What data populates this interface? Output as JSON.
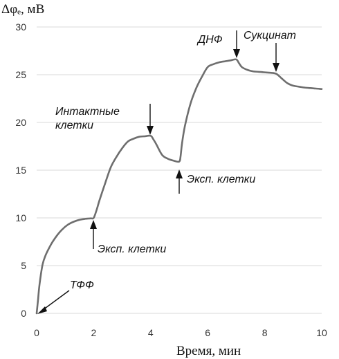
{
  "chart_data": {
    "type": "line",
    "title": "",
    "ylabel": "Δφₑ, мВ",
    "xlabel": "Время, мин",
    "xlim": [
      0,
      10
    ],
    "ylim": [
      0,
      30
    ],
    "xticks": [
      0,
      2,
      4,
      6,
      8,
      10
    ],
    "yticks": [
      0,
      5,
      10,
      15,
      20,
      25,
      30
    ],
    "grid": "horizontal",
    "line_color": "#6e6e6e",
    "x": [
      0,
      0.05,
      0.1,
      0.2,
      0.3,
      0.5,
      0.7,
      0.9,
      1.1,
      1.3,
      1.5,
      1.7,
      1.9,
      2.0,
      2.1,
      2.2,
      2.4,
      2.6,
      2.8,
      3.0,
      3.2,
      3.4,
      3.6,
      3.8,
      4.0,
      4.1,
      4.2,
      4.4,
      4.6,
      4.8,
      5.0,
      5.05,
      5.1,
      5.2,
      5.4,
      5.6,
      5.8,
      6.0,
      6.2,
      6.4,
      6.6,
      6.8,
      7.0,
      7.1,
      7.2,
      7.4,
      7.6,
      7.8,
      8.0,
      8.2,
      8.4,
      8.6,
      8.8,
      9.0,
      9.2,
      9.4,
      9.6,
      9.8,
      10.0
    ],
    "y": [
      0,
      1.5,
      3.0,
      5.0,
      6.0,
      7.2,
      8.1,
      8.8,
      9.3,
      9.6,
      9.8,
      9.9,
      9.95,
      10.0,
      10.8,
      11.8,
      13.6,
      15.3,
      16.4,
      17.3,
      18.0,
      18.3,
      18.5,
      18.55,
      18.6,
      18.2,
      17.7,
      16.6,
      16.2,
      16.0,
      15.9,
      16.5,
      17.8,
      19.6,
      22.0,
      23.6,
      24.8,
      25.8,
      26.1,
      26.3,
      26.4,
      26.5,
      26.6,
      26.2,
      25.8,
      25.5,
      25.35,
      25.3,
      25.25,
      25.2,
      25.1,
      24.6,
      24.1,
      23.85,
      23.75,
      23.65,
      23.6,
      23.55,
      23.5
    ],
    "annotations": [
      {
        "text": "ТФФ",
        "x": 0.05,
        "y": 0.2
      },
      {
        "text": "Эксп. клетки",
        "x": 2.0,
        "y": 10.0
      },
      {
        "text": "Интактные",
        "text2": "клетки",
        "x": 4.0,
        "y": 18.6
      },
      {
        "text": "Эксп. клетки",
        "x": 5.0,
        "y": 15.9
      },
      {
        "text": "ДНФ",
        "x": 7.0,
        "y": 26.6
      },
      {
        "text": "Сукцинат",
        "x": 8.35,
        "y": 25.2
      }
    ]
  }
}
